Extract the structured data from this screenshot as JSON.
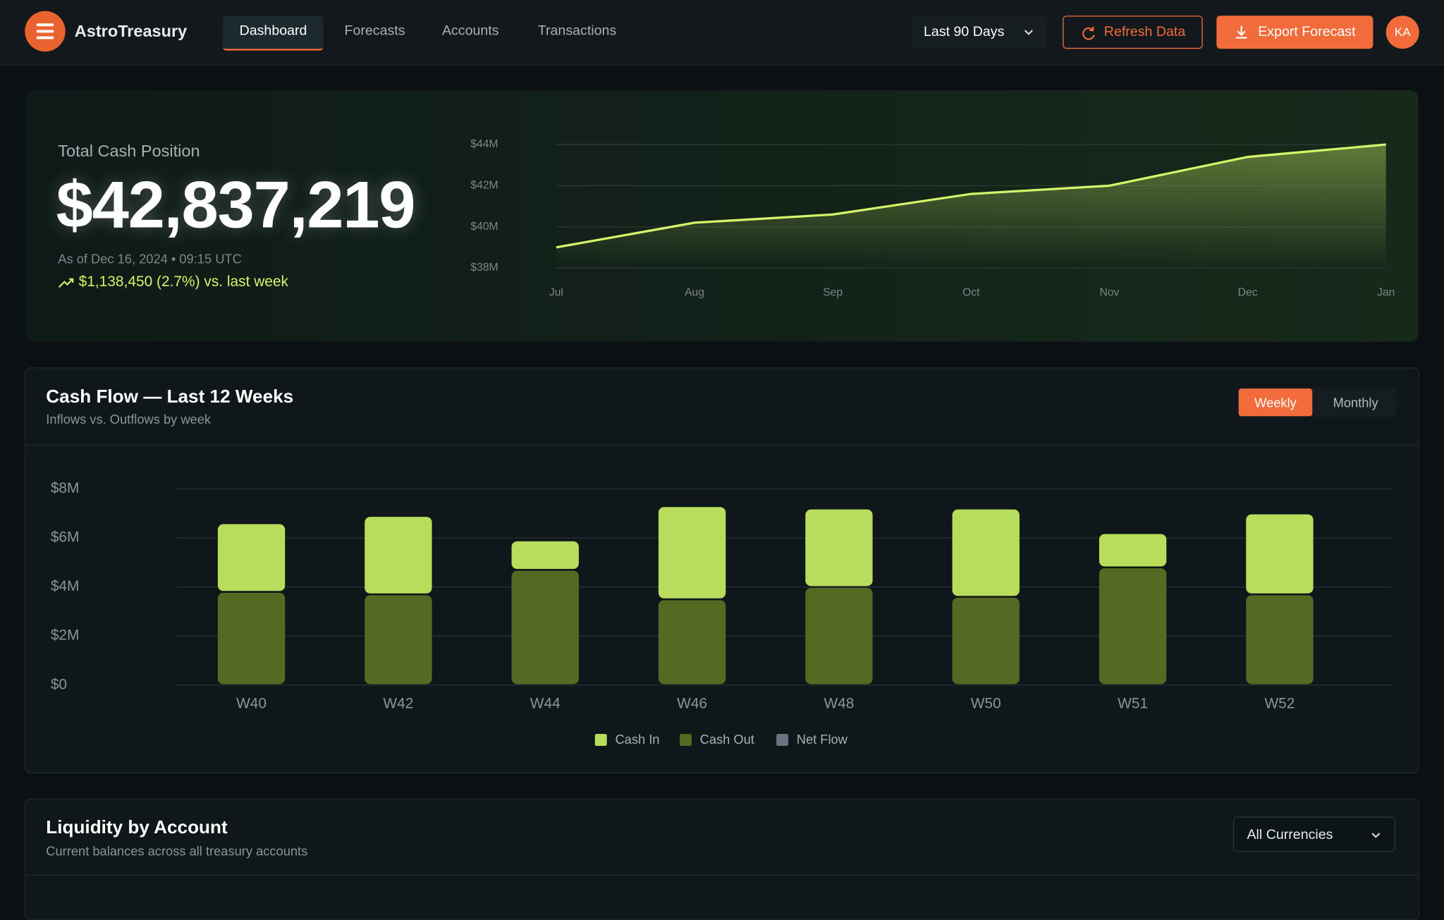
{
  "nav": {
    "brand": "AstroTreasury",
    "tabs": [
      "Dashboard",
      "Forecasts",
      "Accounts",
      "Transactions"
    ],
    "range": "Last 90 Days",
    "refresh": "Refresh Data",
    "export": "Export Forecast",
    "avatar": "KA"
  },
  "hero": {
    "label": "Total Cash Position",
    "amount": "$42,837,219",
    "as_of": "As of Dec 16, 2024 • 09:15 UTC",
    "change": "$1,138,450 (2.7%) vs. last week"
  },
  "cashflow": {
    "title": "Cash Flow — Last 12 Weeks",
    "subtitle": "Inflows vs. Outflows by week",
    "toggles": [
      "Weekly",
      "Monthly"
    ]
  },
  "liquidity": {
    "title": "Liquidity by Account",
    "subtitle": "Current balances across all treasury accounts",
    "filter": "All Currencies"
  },
  "chart_data": [
    {
      "type": "area",
      "x": [
        "Jul",
        "Aug",
        "Sep",
        "Oct",
        "Nov",
        "Dec",
        "Jan"
      ],
      "values": [
        39.0,
        40.2,
        40.6,
        41.6,
        42.0,
        43.4,
        44.0
      ],
      "color": "#d4f56a",
      "ylim": [
        38,
        44
      ],
      "yticks": [
        {
          "value": 38,
          "label": "$38M"
        },
        {
          "value": 40,
          "label": "$40M"
        },
        {
          "value": 42,
          "label": "$42M"
        },
        {
          "value": 44,
          "label": "$44M"
        }
      ],
      "grid": true
    },
    {
      "type": "bar",
      "stacked": true,
      "categories": [
        "W40",
        "W42",
        "W44",
        "W46",
        "W48",
        "W50",
        "W51",
        "W52"
      ],
      "series": [
        {
          "name": "Cash Out",
          "color": "#546a22",
          "values": [
            3.8,
            3.7,
            4.7,
            3.5,
            4.0,
            3.6,
            4.8,
            3.7
          ]
        },
        {
          "name": "Cash In",
          "color": "#b8dd5c",
          "values": [
            2.8,
            3.2,
            1.2,
            3.8,
            3.2,
            3.6,
            1.4,
            3.3
          ]
        },
        {
          "name": "Net Flow",
          "color": "#6b7280",
          "values": [
            null,
            null,
            null,
            null,
            null,
            null,
            null,
            null
          ]
        }
      ],
      "legend_order": [
        1,
        0,
        2
      ],
      "ylim": [
        0,
        8
      ],
      "yticks": [
        {
          "value": 0,
          "label": "$0"
        },
        {
          "value": 2,
          "label": "$2M"
        },
        {
          "value": 4,
          "label": "$4M"
        },
        {
          "value": 6,
          "label": "$6M"
        },
        {
          "value": 8,
          "label": "$8M"
        }
      ],
      "grid": true
    }
  ]
}
